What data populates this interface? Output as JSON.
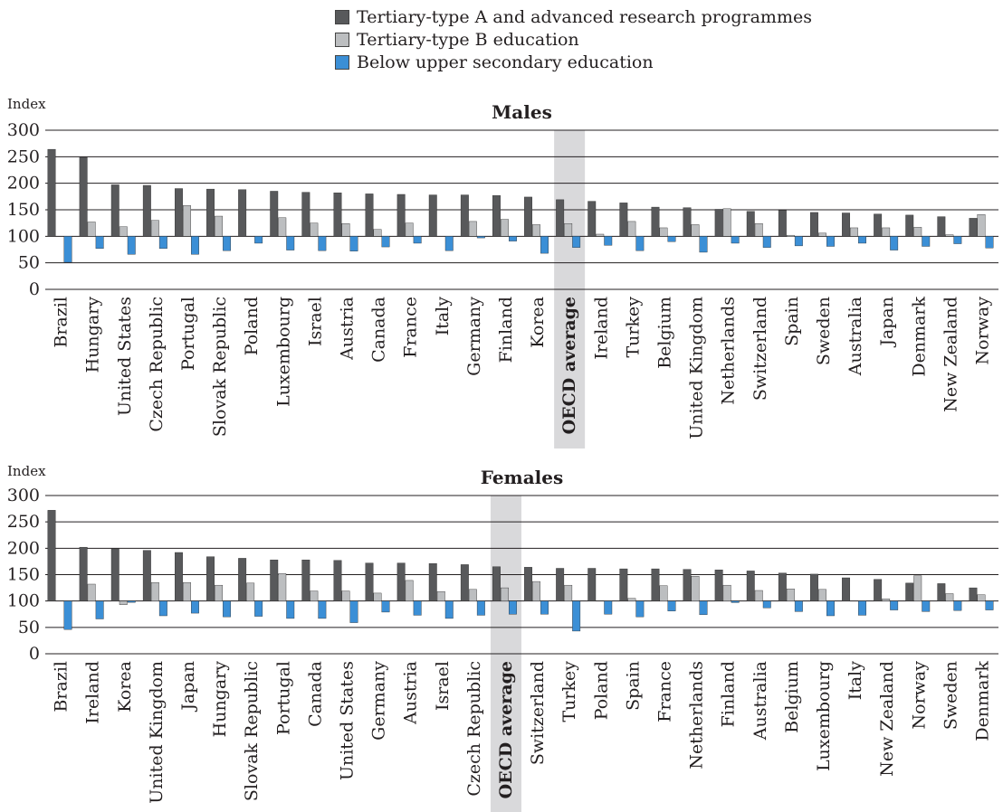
{
  "colors": {
    "tertiary_a": "#58595b",
    "tertiary_b": "#bcbec0",
    "below_upper_secondary": "#3b8fd6",
    "highlight": "#d9d9db",
    "grid": "#231f20"
  },
  "legend": [
    {
      "label": "Tertiary-type A and advanced research programmes",
      "color": "#58595b"
    },
    {
      "label": "Tertiary-type B education",
      "color": "#bcbec0"
    },
    {
      "label": "Below upper secondary education",
      "color": "#3b8fd6"
    }
  ],
  "chart_data": [
    {
      "type": "bar",
      "title": "Males",
      "ylabel": "Index",
      "ylim": [
        0,
        300
      ],
      "yticks": [
        0,
        50,
        100,
        150,
        200,
        250,
        300
      ],
      "baseline": 100,
      "grid": true,
      "highlight_category": "OECD average",
      "categories": [
        "Brazil",
        "Hungary",
        "United States",
        "Czech Republic",
        "Portugal",
        "Slovak Republic",
        "Poland",
        "Luxembourg",
        "Israel",
        "Austria",
        "Canada",
        "France",
        "Italy",
        "Germany",
        "Finland",
        "Korea",
        "OECD average",
        "Ireland",
        "Turkey",
        "Belgium",
        "United Kingdom",
        "Netherlands",
        "Switzerland",
        "Spain",
        "Sweden",
        "Australia",
        "Japan",
        "Denmark",
        "New Zealand",
        "Norway"
      ],
      "series": [
        {
          "name": "Tertiary-type A and advanced research programmes",
          "values": [
            264,
            249,
            197,
            196,
            190,
            189,
            188,
            185,
            183,
            182,
            180,
            179,
            178,
            178,
            177,
            174,
            169,
            166,
            163,
            155,
            154,
            151,
            147,
            149,
            145,
            144,
            142,
            140,
            137,
            134
          ]
        },
        {
          "name": "Tertiary-type B education",
          "values": [
            null,
            127,
            118,
            130,
            158,
            138,
            null,
            135,
            125,
            124,
            113,
            125,
            null,
            128,
            132,
            122,
            124,
            104,
            128,
            116,
            122,
            152,
            124,
            102,
            106,
            116,
            116,
            117,
            103,
            141
          ]
        },
        {
          "name": "Below upper secondary education",
          "values": [
            51,
            77,
            66,
            77,
            66,
            73,
            87,
            74,
            73,
            72,
            80,
            87,
            73,
            97,
            91,
            68,
            79,
            83,
            73,
            90,
            70,
            87,
            79,
            82,
            81,
            87,
            74,
            81,
            86,
            78
          ]
        }
      ]
    },
    {
      "type": "bar",
      "title": "Females",
      "ylabel": "Index",
      "ylim": [
        0,
        300
      ],
      "yticks": [
        0,
        50,
        100,
        150,
        200,
        250,
        300
      ],
      "baseline": 100,
      "grid": true,
      "highlight_category": "OECD average",
      "categories": [
        "Brazil",
        "Ireland",
        "Korea",
        "United Kingdom",
        "Japan",
        "Hungary",
        "Slovak Republic",
        "Portugal",
        "Canada",
        "United States",
        "Germany",
        "Austria",
        "Israel",
        "Czech Republic",
        "OECD average",
        "Switzerland",
        "Turkey",
        "Poland",
        "Spain",
        "France",
        "Netherlands",
        "Finland",
        "Australia",
        "Belgium",
        "Luxembourg",
        "Italy",
        "New Zealand",
        "Norway",
        "Sweden",
        "Denmark"
      ],
      "series": [
        {
          "name": "Tertiary-type A and advanced research programmes",
          "values": [
            272,
            202,
            199,
            196,
            192,
            184,
            181,
            178,
            178,
            177,
            172,
            172,
            171,
            169,
            165,
            164,
            162,
            162,
            161,
            161,
            160,
            159,
            157,
            153,
            151,
            144,
            141,
            134,
            133,
            125
          ]
        },
        {
          "name": "Tertiary-type B education",
          "values": [
            null,
            132,
            93,
            135,
            135,
            130,
            134,
            152,
            119,
            119,
            115,
            139,
            118,
            122,
            125,
            137,
            130,
            null,
            105,
            129,
            147,
            130,
            120,
            123,
            122,
            null,
            104,
            148,
            114,
            112
          ]
        },
        {
          "name": "Below upper secondary education",
          "values": [
            46,
            66,
            98,
            72,
            77,
            70,
            71,
            67,
            67,
            59,
            79,
            73,
            67,
            73,
            75,
            75,
            43,
            75,
            70,
            81,
            74,
            97,
            87,
            80,
            72,
            73,
            83,
            80,
            82,
            83
          ]
        }
      ]
    }
  ]
}
